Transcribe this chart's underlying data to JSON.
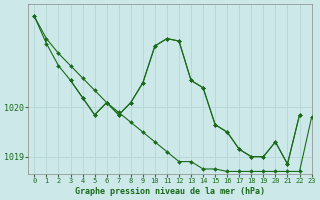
{
  "title": "Graphe pression niveau de la mer (hPa)",
  "bg_color": "#cce8e8",
  "grid_color": "#b8d8d8",
  "line_color": "#1a6b1a",
  "marker_color": "#1a6b1a",
  "xlim": [
    -0.5,
    23
  ],
  "ylim": [
    1018.65,
    1022.1
  ],
  "yticks": [
    1019,
    1020
  ],
  "xticks": [
    0,
    1,
    2,
    3,
    4,
    5,
    6,
    7,
    8,
    9,
    10,
    11,
    12,
    13,
    14,
    15,
    16,
    17,
    18,
    19,
    20,
    21,
    22,
    23
  ],
  "series1": [
    1021.85,
    1021.4,
    1021.1,
    1020.85,
    1020.6,
    1020.35,
    1020.1,
    1019.9,
    1019.7,
    1019.5,
    1019.3,
    1019.1,
    1018.9,
    1018.9,
    1018.75,
    1018.75,
    1018.7,
    1018.7,
    1018.7,
    1018.7,
    1018.7,
    1018.7,
    1018.7,
    1019.8
  ],
  "series2": [
    1021.85,
    1021.3,
    1020.85,
    1020.55,
    1020.2,
    1019.85,
    1020.1,
    1019.85,
    1020.1,
    1020.5,
    1021.25,
    1021.4,
    1021.35,
    1020.55,
    1020.4,
    1019.65,
    1019.5,
    1019.15,
    1019.0,
    1019.0,
    1019.3,
    1018.85,
    1019.85,
    null
  ],
  "series3": [
    null,
    null,
    null,
    1020.55,
    1020.2,
    1019.85,
    1020.1,
    1019.85,
    1020.1,
    1020.5,
    1021.25,
    1021.4,
    1021.35,
    1020.55,
    1020.4,
    1019.65,
    1019.5,
    1019.15,
    1019.0,
    1019.0,
    1019.3,
    1018.85,
    1019.85,
    null
  ]
}
